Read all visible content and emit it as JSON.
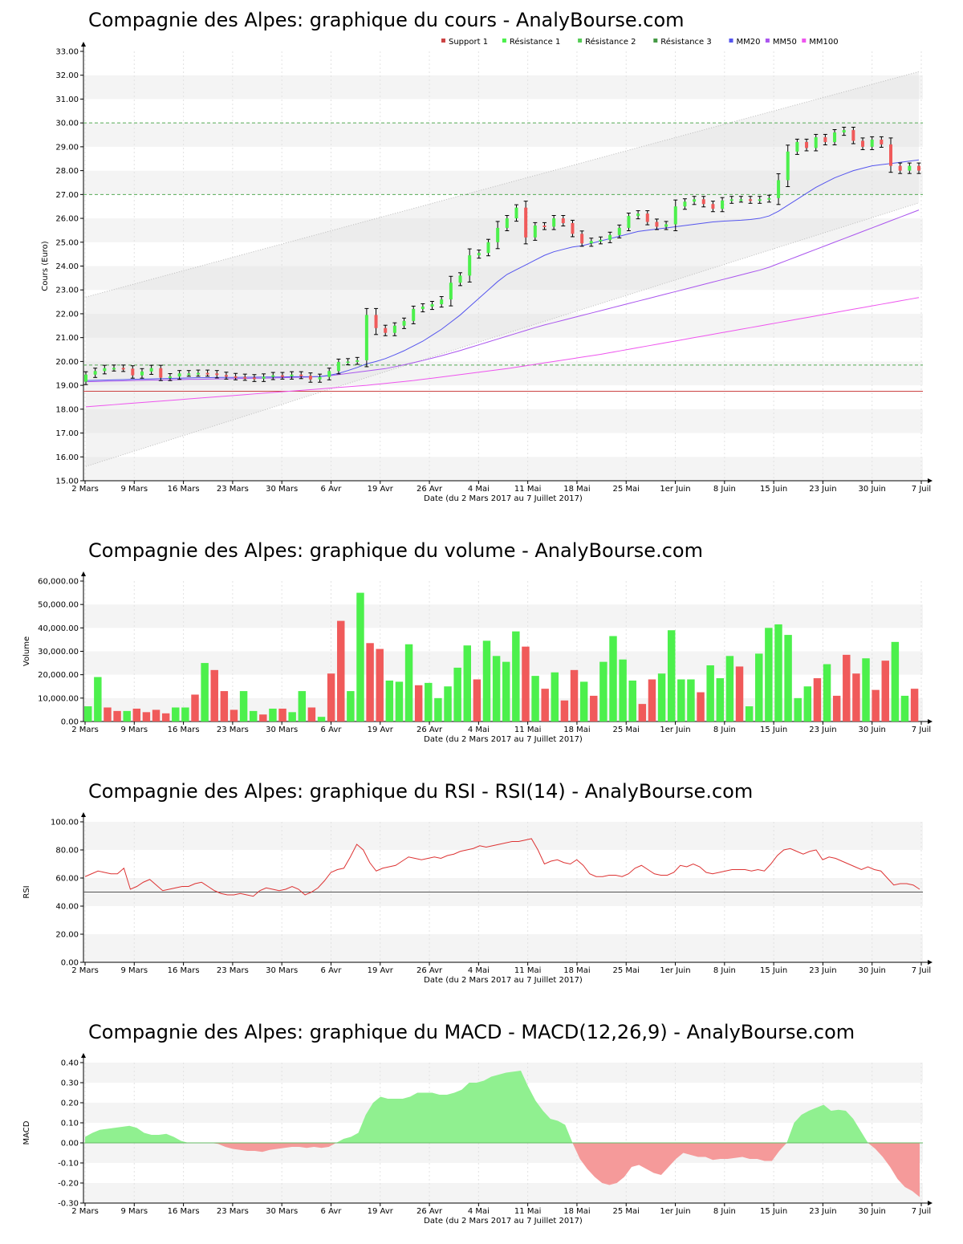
{
  "colors": {
    "up": "#4cf04c",
    "down": "#f05a5a",
    "support": "#cc4444",
    "resistance": "#55aa55",
    "mm20": "#5555ee",
    "mm50": "#aa55ee",
    "mm100": "#ee55ee",
    "rsi": "#dd3333",
    "macd_pos": "#90f090",
    "macd_neg": "#f59a9a"
  },
  "x_ticks": [
    "2 Mars",
    "9 Mars",
    "16 Mars",
    "23 Mars",
    "30 Mars",
    "6 Avr",
    "19 Avr",
    "26 Avr",
    "4 Mai",
    "11 Mai",
    "18 Mai",
    "25 Mai",
    "1er Juin",
    "8 Juin",
    "15 Juin",
    "23 Juin",
    "30 Juin",
    "7 Juil"
  ],
  "x_label": "Date (du 2 Mars 2017 au 7 Juillet 2017)",
  "chart_data": [
    {
      "type": "candlestick",
      "title": "Compagnie des Alpes: graphique du cours - AnalyBourse.com",
      "ylabel": "Cours (Euro)",
      "ylim": [
        15,
        33
      ],
      "yticks": [
        "15.00",
        "16.00",
        "17.00",
        "18.00",
        "19.00",
        "20.00",
        "21.00",
        "22.00",
        "23.00",
        "24.00",
        "25.00",
        "26.00",
        "27.00",
        "28.00",
        "29.00",
        "30.00",
        "31.00",
        "32.00",
        "33.00"
      ],
      "legend_position": "top",
      "legend": [
        {
          "name": "Support 1",
          "color": "#cc4444"
        },
        {
          "name": "Résistance 1",
          "color": "#4cf04c"
        },
        {
          "name": "Résistance 2",
          "color": "#55cc55"
        },
        {
          "name": "Résistance 3",
          "color": "#449944"
        },
        {
          "name": "MM20",
          "color": "#5555ee"
        },
        {
          "name": "MM50",
          "color": "#aa55ee"
        },
        {
          "name": "MM100",
          "color": "#ee55ee"
        }
      ],
      "support": 18.75,
      "resistances": [
        19.85,
        27.0,
        30.0
      ],
      "close": [
        19.45,
        19.6,
        19.72,
        19.73,
        19.7,
        19.42,
        19.58,
        19.72,
        19.32,
        19.37,
        19.5,
        19.5,
        19.52,
        19.5,
        19.43,
        19.38,
        19.35,
        19.33,
        19.28,
        19.36,
        19.42,
        19.38,
        19.45,
        19.4,
        19.25,
        19.35,
        19.6,
        19.98,
        20.0,
        20.05,
        21.95,
        21.4,
        21.2,
        21.5,
        21.7,
        22.2,
        22.3,
        22.4,
        22.6,
        23.3,
        23.6,
        24.45,
        24.55,
        25.0,
        25.6,
        26.0,
        26.45,
        25.2,
        25.7,
        25.65,
        26.0,
        25.8,
        25.35,
        24.95,
        25.05,
        25.1,
        25.3,
        25.6,
        26.1,
        26.2,
        25.85,
        25.65,
        25.75,
        26.5,
        26.7,
        26.8,
        26.6,
        26.4,
        26.75,
        26.8,
        26.8,
        26.75,
        26.8,
        26.85,
        27.6,
        28.8,
        29.2,
        28.95,
        29.4,
        29.2,
        29.6,
        29.7,
        29.25,
        29.0,
        29.3,
        29.1,
        28.2,
        28.0,
        28.2,
        28.0
      ],
      "mm20": [
        19.2,
        19.21,
        19.22,
        19.23,
        19.24,
        19.25,
        19.26,
        19.27,
        19.28,
        19.29,
        19.3,
        19.31,
        19.32,
        19.32,
        19.33,
        19.33,
        19.33,
        19.34,
        19.34,
        19.35,
        19.35,
        19.35,
        19.36,
        19.36,
        19.36,
        19.37,
        19.42,
        19.5,
        19.62,
        19.75,
        19.9,
        20.0,
        20.12,
        20.28,
        20.45,
        20.65,
        20.85,
        21.1,
        21.35,
        21.65,
        21.95,
        22.3,
        22.65,
        23.0,
        23.35,
        23.65,
        23.85,
        24.05,
        24.25,
        24.45,
        24.6,
        24.7,
        24.8,
        24.85,
        24.95,
        25.05,
        25.15,
        25.25,
        25.35,
        25.45,
        25.5,
        25.55,
        25.6,
        25.65,
        25.7,
        25.75,
        25.8,
        25.85,
        25.88,
        25.9,
        25.92,
        25.95,
        26.0,
        26.1,
        26.3,
        26.55,
        26.8,
        27.05,
        27.3,
        27.5,
        27.7,
        27.85,
        28.0,
        28.1,
        28.2,
        28.25,
        28.3,
        28.35,
        28.4,
        28.45
      ],
      "mm50": [
        19.15,
        19.16,
        19.17,
        19.18,
        19.19,
        19.2,
        19.21,
        19.22,
        19.22,
        19.23,
        19.24,
        19.25,
        19.25,
        19.26,
        19.27,
        19.27,
        19.28,
        19.29,
        19.3,
        19.3,
        19.31,
        19.32,
        19.33,
        19.34,
        19.35,
        19.37,
        19.4,
        19.45,
        19.5,
        19.55,
        19.6,
        19.65,
        19.7,
        19.78,
        19.86,
        19.95,
        20.04,
        20.14,
        20.24,
        20.35,
        20.46,
        20.58,
        20.7,
        20.82,
        20.94,
        21.06,
        21.18,
        21.3,
        21.42,
        21.53,
        21.63,
        21.73,
        21.83,
        21.93,
        22.03,
        22.13,
        22.23,
        22.33,
        22.43,
        22.53,
        22.63,
        22.73,
        22.83,
        22.93,
        23.03,
        23.13,
        23.23,
        23.33,
        23.43,
        23.53,
        23.63,
        23.73,
        23.83,
        23.95,
        24.1,
        24.25,
        24.4,
        24.55,
        24.7,
        24.85,
        25.0,
        25.15,
        25.3,
        25.45,
        25.6,
        25.75,
        25.9,
        26.05,
        26.2,
        26.35
      ],
      "mm100": [
        18.1,
        18.13,
        18.16,
        18.19,
        18.22,
        18.25,
        18.28,
        18.31,
        18.34,
        18.37,
        18.4,
        18.43,
        18.46,
        18.49,
        18.52,
        18.55,
        18.58,
        18.61,
        18.64,
        18.67,
        18.7,
        18.73,
        18.76,
        18.79,
        18.82,
        18.85,
        18.88,
        18.91,
        18.94,
        18.97,
        19.0,
        19.04,
        19.08,
        19.12,
        19.16,
        19.2,
        19.25,
        19.3,
        19.35,
        19.4,
        19.45,
        19.5,
        19.55,
        19.6,
        19.65,
        19.7,
        19.76,
        19.82,
        19.88,
        19.94,
        20.0,
        20.06,
        20.12,
        20.18,
        20.24,
        20.3,
        20.37,
        20.44,
        20.51,
        20.58,
        20.65,
        20.72,
        20.79,
        20.86,
        20.93,
        21.0,
        21.07,
        21.14,
        21.21,
        21.28,
        21.35,
        21.42,
        21.49,
        21.56,
        21.63,
        21.7,
        21.77,
        21.84,
        21.91,
        21.98,
        22.05,
        22.12,
        22.19,
        22.26,
        22.33,
        22.4,
        22.47,
        22.54,
        22.61,
        22.68
      ]
    },
    {
      "type": "bar",
      "title": "Compagnie des Alpes: graphique du volume - AnalyBourse.com",
      "ylabel": "Volume",
      "ylim": [
        0,
        60000
      ],
      "yticks": [
        "0.00",
        "10,000.00",
        "20,000.00",
        "30,000.00",
        "40,000.00",
        "50,000.00",
        "60,000.00"
      ],
      "values": [
        6500,
        19000,
        6000,
        4500,
        4500,
        5500,
        4000,
        5000,
        3500,
        6000,
        6000,
        11500,
        25000,
        22000,
        13000,
        5000,
        13000,
        4500,
        3000,
        5500,
        5500,
        4000,
        13000,
        6000,
        2000,
        20500,
        43000,
        13000,
        55000,
        33500,
        31000,
        17500,
        17000,
        33000,
        15500,
        16500,
        10000,
        15000,
        23000,
        32500,
        18000,
        34500,
        28000,
        25500,
        38500,
        32000,
        19500,
        14000,
        21000,
        9000,
        22000,
        17000,
        11000,
        25500,
        36500,
        26500,
        17500,
        7500,
        18000,
        20500,
        39000,
        18000,
        18000,
        12500,
        24000,
        18500,
        28000,
        23500,
        6500,
        29000,
        40000,
        41500,
        37000,
        10000,
        15000,
        18500,
        24500,
        11000,
        28500,
        20500,
        27000,
        13500,
        26000,
        34000,
        11000,
        14000
      ],
      "colors_updown": [
        "up",
        "up",
        "down",
        "down",
        "up",
        "down",
        "down",
        "down",
        "down",
        "up",
        "up",
        "down",
        "up",
        "down",
        "down",
        "down",
        "up",
        "up",
        "down",
        "up",
        "down",
        "up",
        "up",
        "down",
        "up",
        "down",
        "down",
        "up",
        "up",
        "down",
        "down",
        "up",
        "up",
        "up",
        "down",
        "up",
        "up",
        "up",
        "up",
        "up",
        "down",
        "up",
        "up",
        "up",
        "up",
        "down",
        "up",
        "down",
        "up",
        "down",
        "down",
        "up",
        "down",
        "up",
        "up",
        "up",
        "up",
        "down",
        "down",
        "up",
        "up",
        "up",
        "up",
        "down",
        "up",
        "up",
        "up",
        "down",
        "up",
        "up",
        "up",
        "up",
        "up",
        "up",
        "up",
        "down",
        "up",
        "down",
        "down",
        "down",
        "up",
        "down",
        "down",
        "up",
        "up",
        "down"
      ]
    },
    {
      "type": "line",
      "title": "Compagnie des Alpes: graphique du RSI - RSI(14) - AnalyBourse.com",
      "ylabel": "RSI",
      "ylim": [
        0,
        100
      ],
      "yticks": [
        "0.00",
        "20.00",
        "40.00",
        "60.00",
        "80.00",
        "100.00"
      ],
      "reference": 50,
      "values": [
        61,
        63,
        65,
        64,
        63,
        63,
        67,
        52,
        54,
        57,
        59,
        55,
        51,
        52,
        53,
        54,
        54,
        56,
        57,
        54,
        51,
        49,
        48,
        48,
        49,
        48,
        47,
        51,
        53,
        52,
        51,
        52,
        54,
        52,
        48,
        50,
        53,
        58,
        64,
        66,
        67,
        75,
        84,
        80,
        71,
        65,
        67,
        68,
        69,
        72,
        75,
        74,
        73,
        74,
        75,
        74,
        76,
        77,
        79,
        80,
        81,
        83,
        82,
        83,
        84,
        85,
        86,
        86,
        87,
        88,
        80,
        70,
        72,
        73,
        71,
        70,
        73,
        69,
        63,
        61,
        61,
        62,
        62,
        61,
        63,
        67,
        69,
        66,
        63,
        62,
        62,
        64,
        69,
        68,
        70,
        68,
        64,
        63,
        64,
        65,
        66,
        66,
        66,
        65,
        66,
        65,
        70,
        76,
        80,
        81,
        79,
        77,
        79,
        80,
        73,
        75,
        74,
        72,
        70,
        68,
        66,
        68,
        66,
        65,
        60,
        55,
        56,
        56,
        55,
        52
      ],
      "color": "#dd3333"
    },
    {
      "type": "area",
      "title": "Compagnie des Alpes: graphique du MACD - MACD(12,26,9) - AnalyBourse.com",
      "ylabel": "MACD",
      "ylim": [
        -0.3,
        0.4
      ],
      "yticks": [
        "-0.30",
        "-0.20",
        "-0.10",
        "0.00",
        "0.10",
        "0.20",
        "0.30",
        "0.40"
      ],
      "values": [
        0.03,
        0.05,
        0.065,
        0.07,
        0.075,
        0.08,
        0.085,
        0.075,
        0.05,
        0.04,
        0.04,
        0.045,
        0.03,
        0.01,
        0.0,
        0.0,
        0.0,
        0.0,
        -0.005,
        -0.02,
        -0.03,
        -0.035,
        -0.04,
        -0.04,
        -0.045,
        -0.035,
        -0.03,
        -0.025,
        -0.02,
        -0.02,
        -0.025,
        -0.02,
        -0.025,
        -0.02,
        0.0,
        0.02,
        0.03,
        0.05,
        0.14,
        0.2,
        0.23,
        0.22,
        0.22,
        0.22,
        0.23,
        0.25,
        0.25,
        0.25,
        0.24,
        0.24,
        0.25,
        0.265,
        0.3,
        0.3,
        0.31,
        0.33,
        0.34,
        0.35,
        0.355,
        0.36,
        0.28,
        0.21,
        0.16,
        0.12,
        0.11,
        0.09,
        0.0,
        -0.08,
        -0.13,
        -0.17,
        -0.2,
        -0.21,
        -0.2,
        -0.17,
        -0.12,
        -0.11,
        -0.13,
        -0.15,
        -0.16,
        -0.12,
        -0.08,
        -0.05,
        -0.06,
        -0.07,
        -0.07,
        -0.085,
        -0.08,
        -0.08,
        -0.075,
        -0.07,
        -0.08,
        -0.08,
        -0.09,
        -0.09,
        -0.04,
        0.0,
        0.1,
        0.14,
        0.16,
        0.175,
        0.19,
        0.16,
        0.165,
        0.16,
        0.12,
        0.06,
        0.0,
        -0.03,
        -0.07,
        -0.12,
        -0.18,
        -0.22,
        -0.24,
        -0.27
      ]
    }
  ]
}
